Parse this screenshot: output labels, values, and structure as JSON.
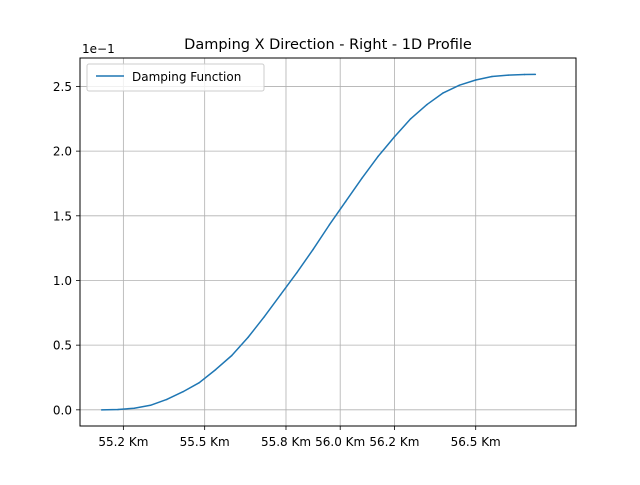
{
  "chart_data": {
    "type": "line",
    "title": "Damping X Direction - Right - 1D Profile",
    "xlabel": "",
    "ylabel": "",
    "y_scale_label": "1e−1",
    "grid": true,
    "legend_position": "top-left",
    "xlim": [
      55.04,
      56.87
    ],
    "ylim": [
      -0.125,
      2.72
    ],
    "x_ticks": [
      55.2,
      55.5,
      55.8,
      56.0,
      56.2,
      56.5
    ],
    "x_tick_labels": [
      "55.2 Km",
      "55.5 Km",
      "55.8 Km",
      "56.0 Km",
      "56.2 Km",
      "56.5 Km"
    ],
    "y_ticks": [
      0.0,
      0.5,
      1.0,
      1.5,
      2.0,
      2.5
    ],
    "y_tick_labels": [
      "0.0",
      "0.5",
      "1.0",
      "1.5",
      "2.0",
      "2.5"
    ],
    "series": [
      {
        "name": "Damping Function",
        "color": "#1f77b4",
        "x": [
          55.12,
          55.18,
          55.24,
          55.3,
          55.36,
          55.42,
          55.48,
          55.54,
          55.6,
          55.66,
          55.72,
          55.78,
          55.84,
          55.9,
          55.96,
          56.02,
          56.08,
          56.14,
          56.2,
          56.26,
          56.32,
          56.38,
          56.44,
          56.5,
          56.56,
          56.62,
          56.68,
          56.72
        ],
        "y": [
          0.0,
          0.003,
          0.012,
          0.035,
          0.08,
          0.14,
          0.21,
          0.31,
          0.42,
          0.56,
          0.72,
          0.89,
          1.06,
          1.24,
          1.43,
          1.61,
          1.79,
          1.96,
          2.11,
          2.25,
          2.36,
          2.45,
          2.51,
          2.55,
          2.577,
          2.588,
          2.592,
          2.593
        ]
      }
    ]
  }
}
